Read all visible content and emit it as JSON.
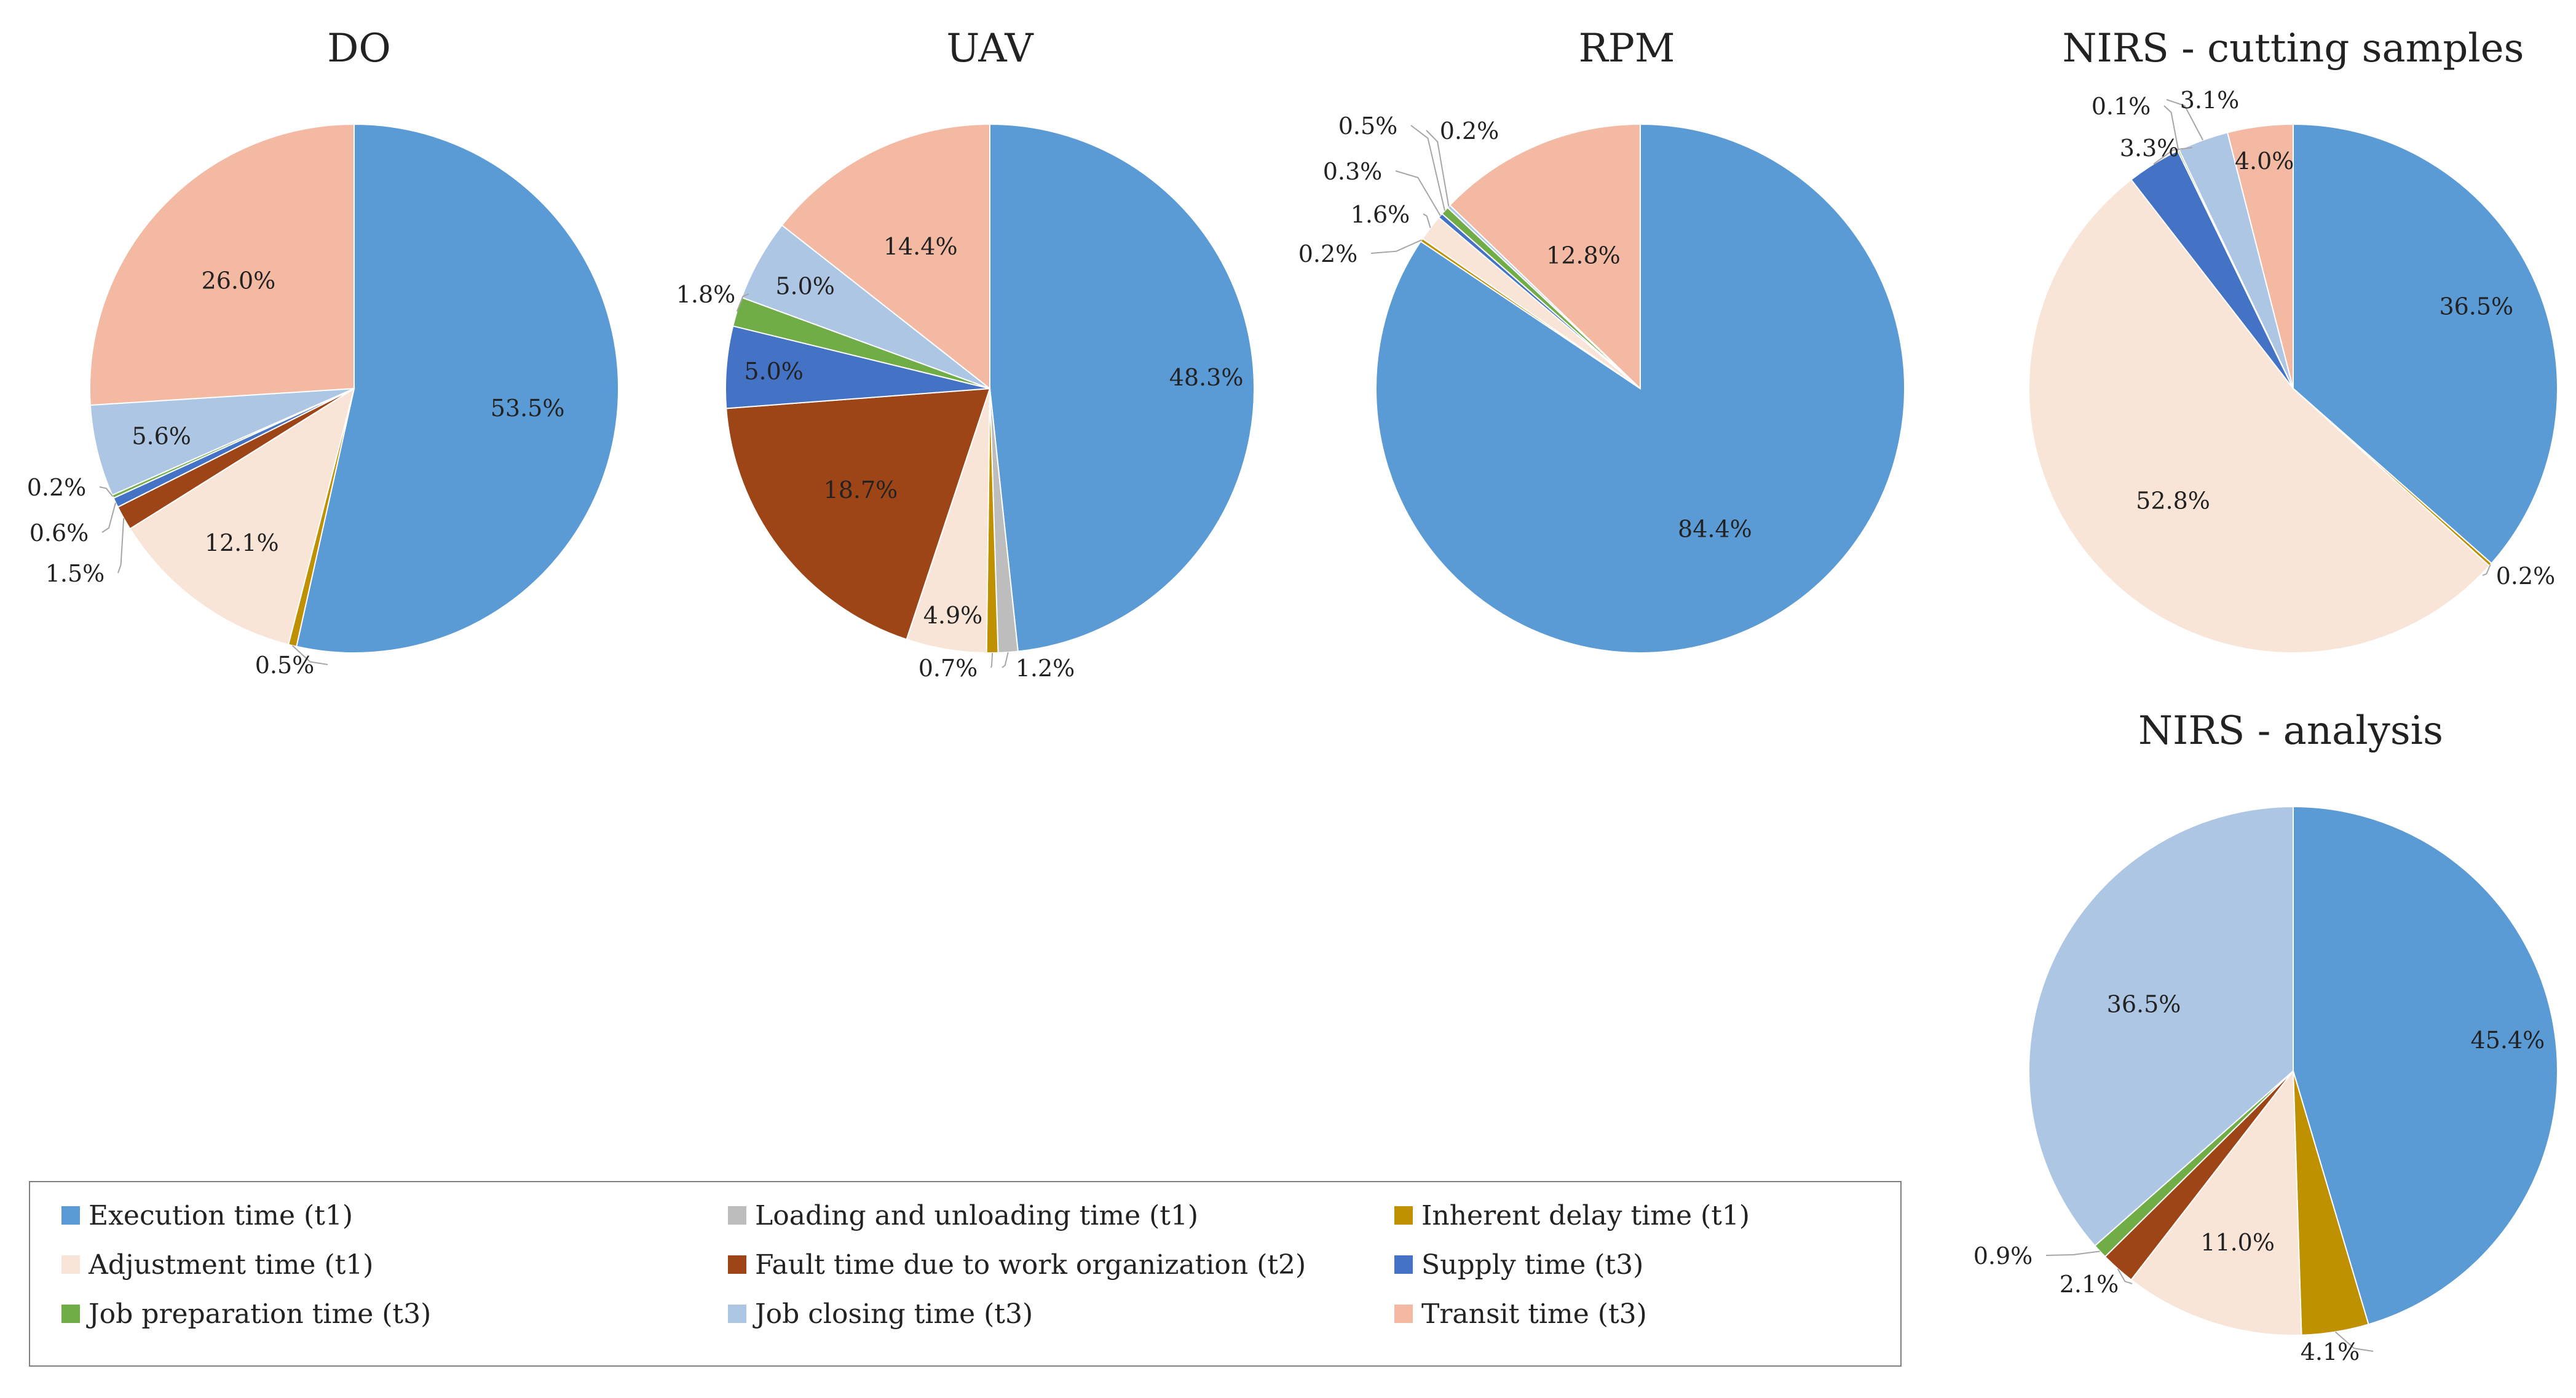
{
  "colors": {
    "execution": "#5B9BD5",
    "loading": "#BDBDBD",
    "inherent": "#BF9000",
    "adjustment": "#F8E5D8",
    "fault": "#9E4518",
    "supply": "#4472C4",
    "preparation": "#70AD47",
    "closing": "#ADC6E4",
    "transit": "#F4B9A2"
  },
  "legend": {
    "items": [
      {
        "key": "execution",
        "label": "Execution time (t1)"
      },
      {
        "key": "loading",
        "label": "Loading and unloading time (t1)"
      },
      {
        "key": "inherent",
        "label": "Inherent delay time (t1)"
      },
      {
        "key": "adjustment",
        "label": "Adjustment time (t1)"
      },
      {
        "key": "fault",
        "label": "Fault time due to work organization (t2)"
      },
      {
        "key": "supply",
        "label": "Supply time (t3)"
      },
      {
        "key": "preparation",
        "label": "Job preparation time (t3)"
      },
      {
        "key": "closing",
        "label": "Job closing time (t3)"
      },
      {
        "key": "transit",
        "label": "Transit time (t3)"
      }
    ]
  },
  "chart_data": [
    {
      "type": "pie",
      "title": "DO",
      "slices": [
        {
          "key": "execution",
          "value": 53.5,
          "label": "53.5%"
        },
        {
          "key": "loading",
          "value": 0.0,
          "label": ""
        },
        {
          "key": "inherent",
          "value": 0.5,
          "label": "0.5%"
        },
        {
          "key": "adjustment",
          "value": 12.1,
          "label": "12.1%"
        },
        {
          "key": "fault",
          "value": 1.5,
          "label": "1.5%"
        },
        {
          "key": "supply",
          "value": 0.6,
          "label": "0.6%"
        },
        {
          "key": "preparation",
          "value": 0.2,
          "label": "0.2%"
        },
        {
          "key": "closing",
          "value": 5.6,
          "label": "5.6%"
        },
        {
          "key": "transit",
          "value": 26.0,
          "label": "26.0%"
        }
      ]
    },
    {
      "type": "pie",
      "title": "UAV",
      "slices": [
        {
          "key": "execution",
          "value": 48.3,
          "label": "48.3%"
        },
        {
          "key": "loading",
          "value": 1.2,
          "label": "1.2%"
        },
        {
          "key": "inherent",
          "value": 0.7,
          "label": "0.7%"
        },
        {
          "key": "adjustment",
          "value": 4.9,
          "label": "4.9%"
        },
        {
          "key": "fault",
          "value": 18.7,
          "label": "18.7%"
        },
        {
          "key": "supply",
          "value": 5.0,
          "label": "5.0%"
        },
        {
          "key": "preparation",
          "value": 1.8,
          "label": "1.8%"
        },
        {
          "key": "closing",
          "value": 5.0,
          "label": "5.0%"
        },
        {
          "key": "transit",
          "value": 14.4,
          "label": "14.4%"
        }
      ]
    },
    {
      "type": "pie",
      "title": "RPM",
      "slices": [
        {
          "key": "execution",
          "value": 84.4,
          "label": "84.4%"
        },
        {
          "key": "loading",
          "value": 0.0,
          "label": ""
        },
        {
          "key": "inherent",
          "value": 0.2,
          "label": "0.2%"
        },
        {
          "key": "adjustment",
          "value": 1.6,
          "label": "1.6%"
        },
        {
          "key": "fault",
          "value": 0.0,
          "label": ""
        },
        {
          "key": "supply",
          "value": 0.3,
          "label": "0.3%"
        },
        {
          "key": "preparation",
          "value": 0.5,
          "label": "0.5%"
        },
        {
          "key": "closing",
          "value": 0.2,
          "label": "0.2%"
        },
        {
          "key": "transit",
          "value": 12.8,
          "label": "12.8%"
        }
      ]
    },
    {
      "type": "pie",
      "title": "NIRS - cutting samples",
      "slices": [
        {
          "key": "execution",
          "value": 36.5,
          "label": "36.5%"
        },
        {
          "key": "loading",
          "value": 0.0,
          "label": ""
        },
        {
          "key": "inherent",
          "value": 0.2,
          "label": "0.2%"
        },
        {
          "key": "adjustment",
          "value": 52.8,
          "label": "52.8%"
        },
        {
          "key": "fault",
          "value": 0.0,
          "label": ""
        },
        {
          "key": "supply",
          "value": 3.3,
          "label": "3.3%"
        },
        {
          "key": "preparation",
          "value": 0.1,
          "label": "0.1%"
        },
        {
          "key": "closing",
          "value": 3.1,
          "label": "3.1%"
        },
        {
          "key": "transit",
          "value": 4.0,
          "label": "4.0%"
        }
      ]
    },
    {
      "type": "pie",
      "title": "NIRS - analysis",
      "slices": [
        {
          "key": "execution",
          "value": 45.4,
          "label": "45.4%"
        },
        {
          "key": "loading",
          "value": 0.0,
          "label": ""
        },
        {
          "key": "inherent",
          "value": 4.1,
          "label": "4.1%"
        },
        {
          "key": "adjustment",
          "value": 11.0,
          "label": "11.0%"
        },
        {
          "key": "fault",
          "value": 2.1,
          "label": "2.1%"
        },
        {
          "key": "supply",
          "value": 0.0,
          "label": ""
        },
        {
          "key": "preparation",
          "value": 0.9,
          "label": "0.9%"
        },
        {
          "key": "closing",
          "value": 36.5,
          "label": "36.5%"
        },
        {
          "key": "transit",
          "value": 0.0,
          "label": ""
        }
      ]
    }
  ]
}
